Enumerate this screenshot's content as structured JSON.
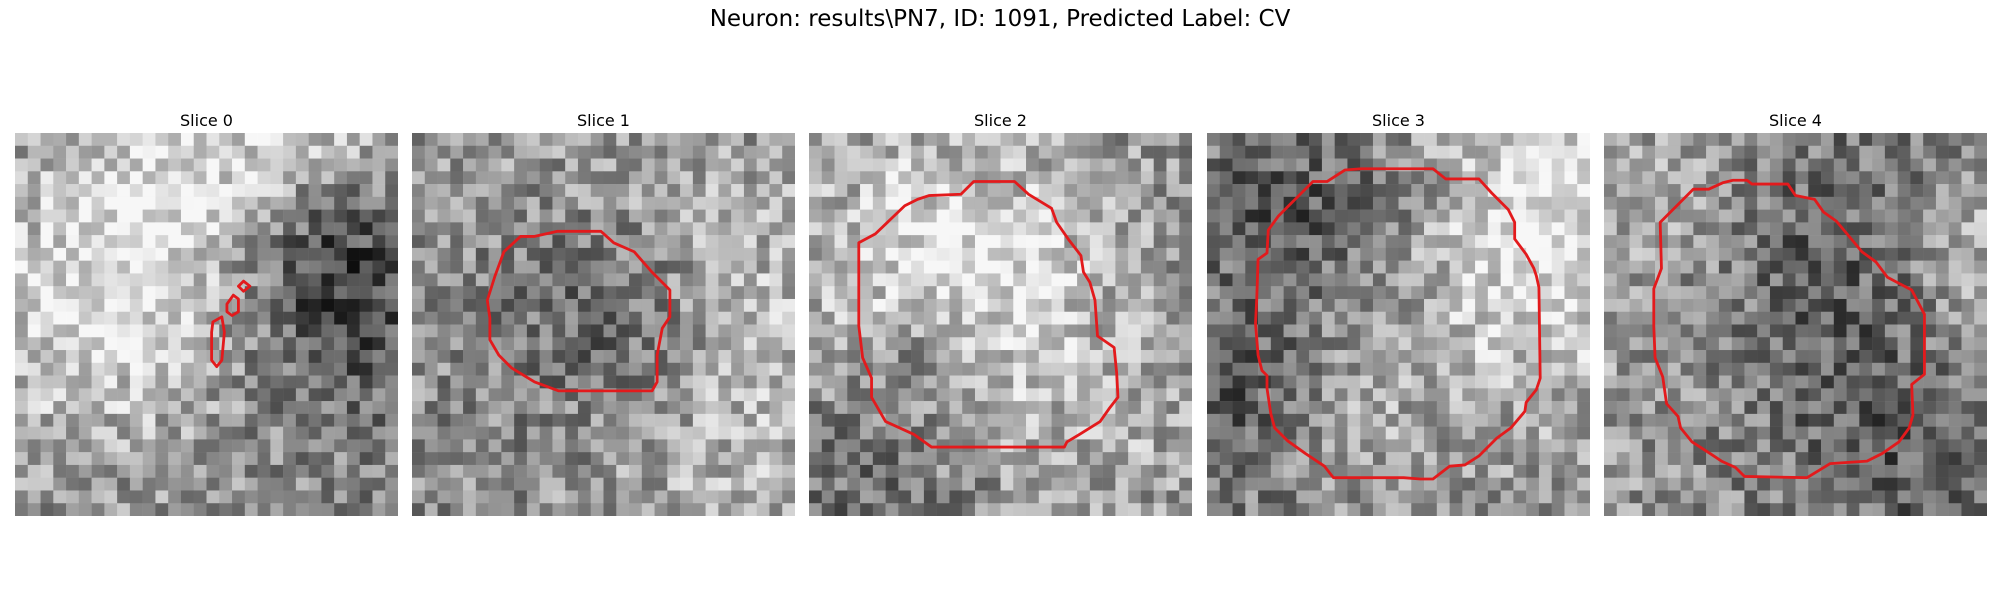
{
  "figure": {
    "suptitle": "Neuron: results\\PN7, ID: 1091, Predicted Label: CV",
    "contour_color": "#e31a1c",
    "colormap": "gray"
  },
  "panels": [
    {
      "title": "Slice 0"
    },
    {
      "title": "Slice 1"
    },
    {
      "title": "Slice 2"
    },
    {
      "title": "Slice 3"
    },
    {
      "title": "Slice 4"
    }
  ]
}
